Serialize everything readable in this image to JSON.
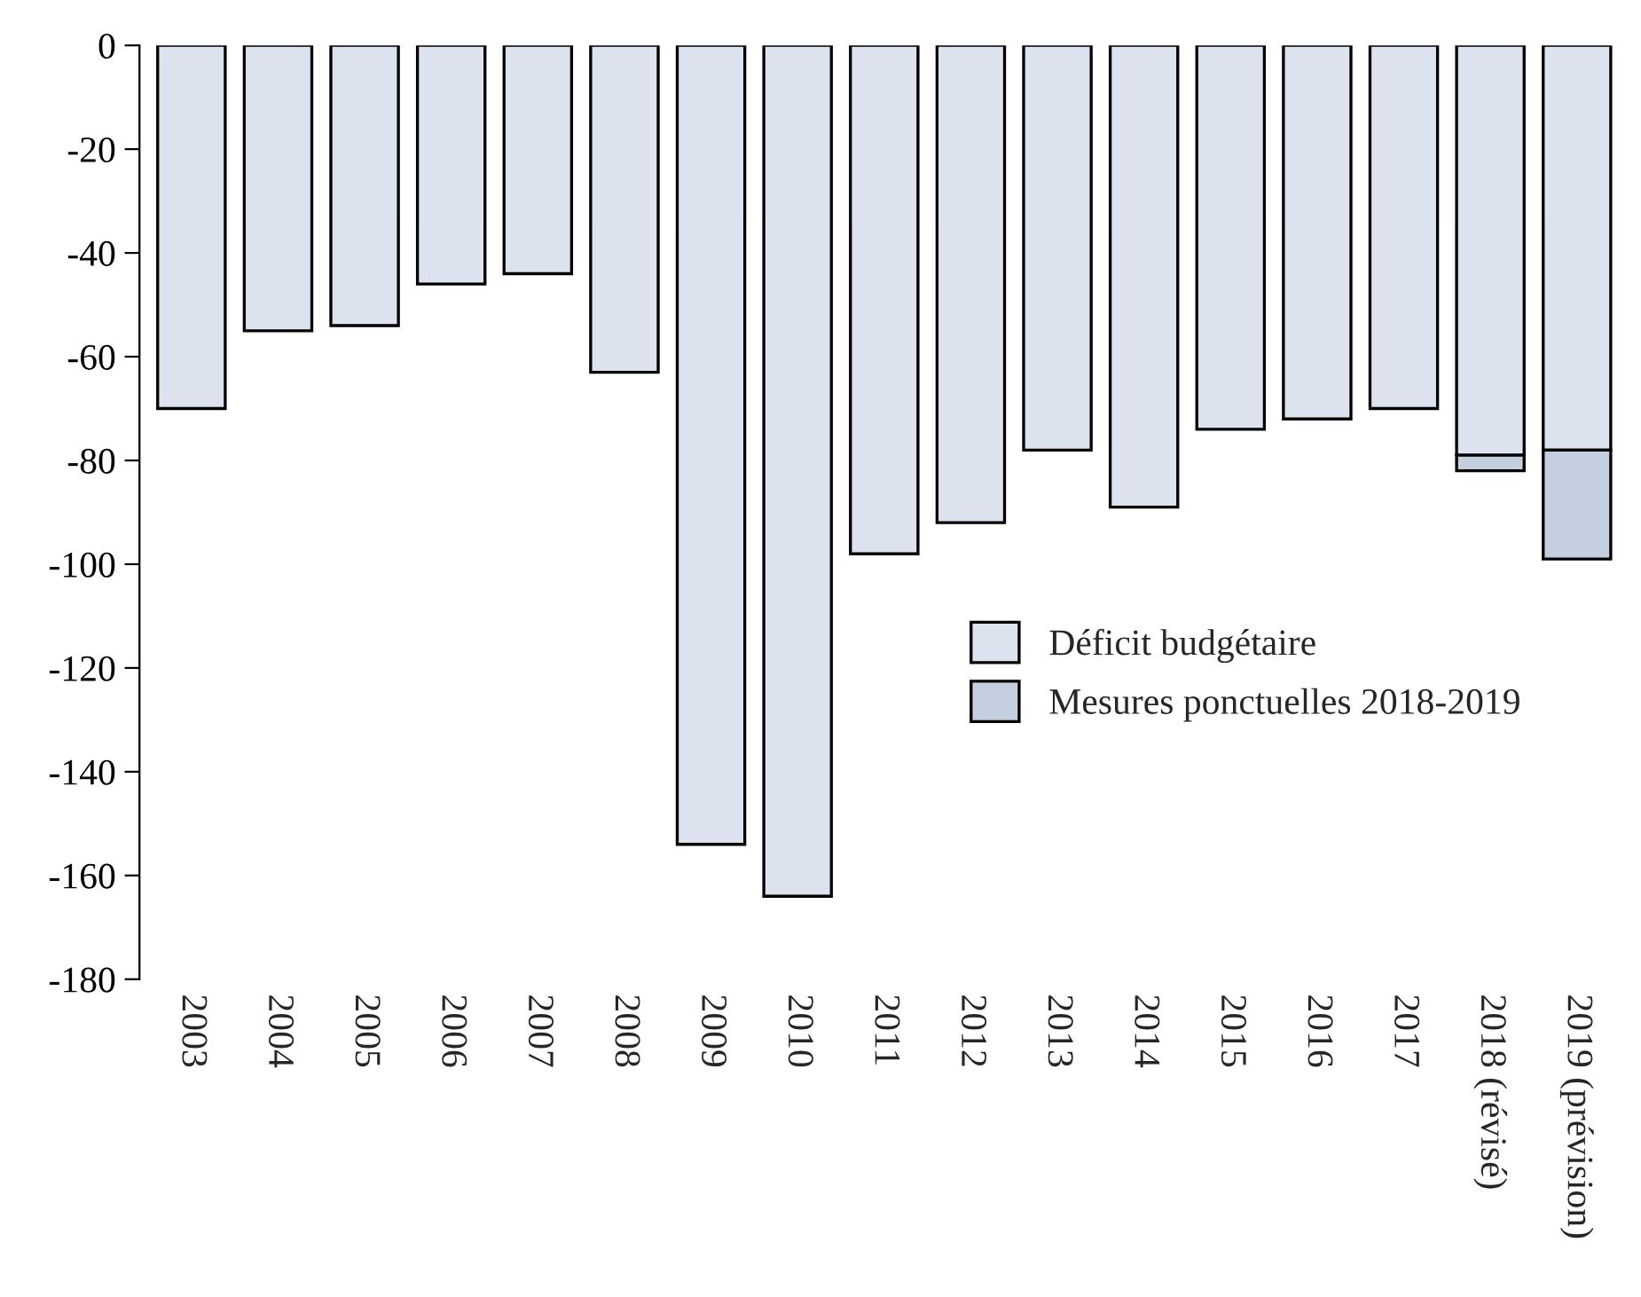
{
  "chart_data": {
    "type": "bar",
    "stacked": true,
    "categories": [
      "2003",
      "2004",
      "2005",
      "2006",
      "2007",
      "2008",
      "2009",
      "2010",
      "2011",
      "2012",
      "2013",
      "2014",
      "2015",
      "2016",
      "2017",
      "2018 (révisé)",
      "2019 (prévision)"
    ],
    "series": [
      {
        "name": "Déficit budgétaire",
        "color": "#dde3ee",
        "values": [
          -70,
          -55,
          -54,
          -46,
          -44,
          -63,
          -154,
          -164,
          -98,
          -92,
          -78,
          -89,
          -74,
          -72,
          -70,
          -79,
          -78
        ]
      },
      {
        "name": "Mesures ponctuelles 2018-2019",
        "color": "#c4cfe0",
        "values": [
          null,
          null,
          null,
          null,
          null,
          null,
          null,
          null,
          null,
          null,
          null,
          null,
          null,
          null,
          null,
          -3,
          -21
        ]
      }
    ],
    "ylim": [
      -180,
      0
    ],
    "yticks": [
      -180,
      -160,
      -140,
      -120,
      -100,
      -80,
      -60,
      -40,
      -20,
      0
    ],
    "grid": false,
    "legend": "bottom right"
  }
}
